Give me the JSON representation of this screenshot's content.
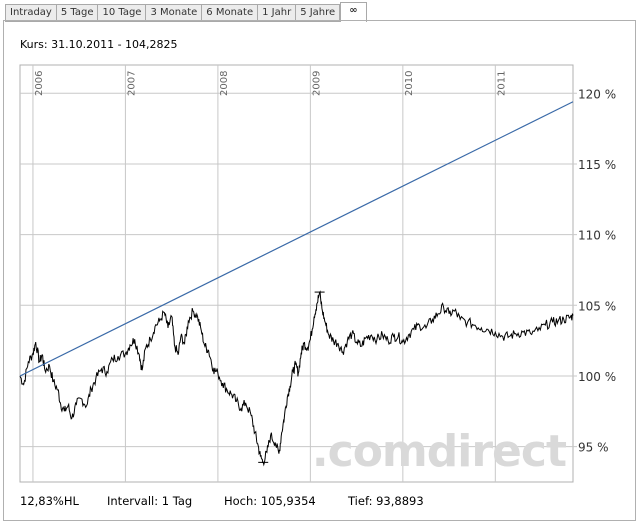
{
  "tabs": [
    {
      "label": "Intraday",
      "active": false
    },
    {
      "label": "5 Tage",
      "active": false
    },
    {
      "label": "10 Tage",
      "active": false
    },
    {
      "label": "3 Monate",
      "active": false
    },
    {
      "label": "6 Monate",
      "active": false
    },
    {
      "label": "1 Jahr",
      "active": false
    },
    {
      "label": "5 Jahre",
      "active": false
    },
    {
      "label": "∞",
      "active": true
    }
  ],
  "kurs": "Kurs: 31.10.2011 - 104,2825",
  "watermark": ".comdirect",
  "footer": {
    "hl": "12,83%HL",
    "intervall": "Intervall: 1 Tag",
    "hoch": "Hoch: 105,9354",
    "tief": "Tief: 93,8893"
  },
  "colors": {
    "price_line": "#000000",
    "trend_line": "#3a6aa8",
    "grid": "#c8c8c8",
    "watermark": "#d9d9d9"
  },
  "chart_data": {
    "type": "line",
    "x_ticks": [
      "2006",
      "2007",
      "2008",
      "2009",
      "2010",
      "2011"
    ],
    "y_ticks": [
      {
        "value": 95,
        "label": "95 %"
      },
      {
        "value": 100,
        "label": "100 %"
      },
      {
        "value": 105,
        "label": "105 %"
      },
      {
        "value": 110,
        "label": "110 %"
      },
      {
        "value": 115,
        "label": "115 %"
      },
      {
        "value": 120,
        "label": "120 %"
      }
    ],
    "xlim": [
      2005.86,
      2011.84
    ],
    "ylim": [
      92.5,
      122
    ],
    "grid": true,
    "series": [
      {
        "style": "price",
        "points": [
          [
            2005.86,
            100.0
          ],
          [
            2005.9,
            99.4
          ],
          [
            2005.95,
            101.0
          ],
          [
            2006.0,
            101.6
          ],
          [
            2006.03,
            102.4
          ],
          [
            2006.07,
            101.0
          ],
          [
            2006.1,
            101.5
          ],
          [
            2006.13,
            100.4
          ],
          [
            2006.18,
            100.7
          ],
          [
            2006.22,
            99.6
          ],
          [
            2006.27,
            99.0
          ],
          [
            2006.3,
            98.0
          ],
          [
            2006.34,
            97.5
          ],
          [
            2006.38,
            97.9
          ],
          [
            2006.42,
            97.0
          ],
          [
            2006.47,
            98.0
          ],
          [
            2006.52,
            98.4
          ],
          [
            2006.58,
            97.9
          ],
          [
            2006.63,
            99.1
          ],
          [
            2006.68,
            99.8
          ],
          [
            2006.74,
            100.5
          ],
          [
            2006.8,
            100.3
          ],
          [
            2006.86,
            101.2
          ],
          [
            2006.92,
            101.4
          ],
          [
            2007.0,
            101.6
          ],
          [
            2007.05,
            102.2
          ],
          [
            2007.1,
            102.6
          ],
          [
            2007.15,
            101.5
          ],
          [
            2007.18,
            100.4
          ],
          [
            2007.22,
            102.0
          ],
          [
            2007.27,
            102.6
          ],
          [
            2007.32,
            103.5
          ],
          [
            2007.37,
            103.9
          ],
          [
            2007.42,
            104.5
          ],
          [
            2007.46,
            103.4
          ],
          [
            2007.5,
            104.2
          ],
          [
            2007.53,
            102.2
          ],
          [
            2007.57,
            101.5
          ],
          [
            2007.6,
            102.8
          ],
          [
            2007.64,
            102.3
          ],
          [
            2007.68,
            103.9
          ],
          [
            2007.73,
            104.6
          ],
          [
            2007.78,
            104.2
          ],
          [
            2007.82,
            103.2
          ],
          [
            2007.86,
            102.1
          ],
          [
            2007.9,
            101.8
          ],
          [
            2007.95,
            100.5
          ],
          [
            2008.0,
            100.2
          ],
          [
            2008.05,
            99.5
          ],
          [
            2008.1,
            99.0
          ],
          [
            2008.15,
            98.7
          ],
          [
            2008.2,
            98.2
          ],
          [
            2008.25,
            97.7
          ],
          [
            2008.3,
            98.1
          ],
          [
            2008.36,
            97.2
          ],
          [
            2008.4,
            96.0
          ],
          [
            2008.43,
            95.2
          ],
          [
            2008.46,
            94.3
          ],
          [
            2008.49,
            93.9
          ],
          [
            2008.53,
            94.6
          ],
          [
            2008.57,
            95.8
          ],
          [
            2008.62,
            95.3
          ],
          [
            2008.66,
            94.5
          ],
          [
            2008.69,
            96.0
          ],
          [
            2008.72,
            97.2
          ],
          [
            2008.75,
            98.5
          ],
          [
            2008.78,
            99.3
          ],
          [
            2008.81,
            100.3
          ],
          [
            2008.84,
            100.8
          ],
          [
            2008.87,
            100.2
          ],
          [
            2008.9,
            101.6
          ],
          [
            2008.93,
            102.3
          ],
          [
            2008.97,
            102.0
          ],
          [
            2009.0,
            102.6
          ],
          [
            2009.04,
            104.2
          ],
          [
            2009.07,
            105.1
          ],
          [
            2009.1,
            105.9
          ],
          [
            2009.13,
            104.6
          ],
          [
            2009.16,
            103.8
          ],
          [
            2009.2,
            102.9
          ],
          [
            2009.25,
            102.5
          ],
          [
            2009.3,
            102.3
          ],
          [
            2009.35,
            101.7
          ],
          [
            2009.4,
            102.5
          ],
          [
            2009.45,
            103.0
          ],
          [
            2009.5,
            102.4
          ],
          [
            2009.55,
            102.1
          ],
          [
            2009.6,
            102.7
          ],
          [
            2009.66,
            102.9
          ],
          [
            2009.72,
            102.6
          ],
          [
            2009.78,
            102.9
          ],
          [
            2009.84,
            102.5
          ],
          [
            2009.9,
            102.8
          ],
          [
            2009.95,
            102.8
          ],
          [
            2010.0,
            102.4
          ],
          [
            2010.06,
            102.9
          ],
          [
            2010.12,
            103.3
          ],
          [
            2010.18,
            103.6
          ],
          [
            2010.25,
            103.4
          ],
          [
            2010.32,
            104.0
          ],
          [
            2010.38,
            104.4
          ],
          [
            2010.44,
            104.9
          ],
          [
            2010.5,
            104.4
          ],
          [
            2010.56,
            104.6
          ],
          [
            2010.62,
            104.0
          ],
          [
            2010.7,
            103.8
          ],
          [
            2010.78,
            103.6
          ],
          [
            2010.85,
            103.4
          ],
          [
            2010.92,
            103.3
          ],
          [
            2011.0,
            103.1
          ],
          [
            2011.08,
            102.8
          ],
          [
            2011.15,
            102.8
          ],
          [
            2011.22,
            103.0
          ],
          [
            2011.3,
            103.1
          ],
          [
            2011.38,
            103.0
          ],
          [
            2011.46,
            103.2
          ],
          [
            2011.54,
            103.6
          ],
          [
            2011.62,
            103.8
          ],
          [
            2011.68,
            103.9
          ],
          [
            2011.74,
            104.0
          ],
          [
            2011.8,
            104.1
          ],
          [
            2011.84,
            104.28
          ]
        ]
      },
      {
        "style": "trend",
        "points": [
          [
            2005.86,
            100.0
          ],
          [
            2011.84,
            119.4
          ]
        ]
      }
    ],
    "markers": [
      {
        "x": 2009.1,
        "y": 105.9354
      },
      {
        "x": 2008.49,
        "y": 93.8893
      }
    ]
  }
}
